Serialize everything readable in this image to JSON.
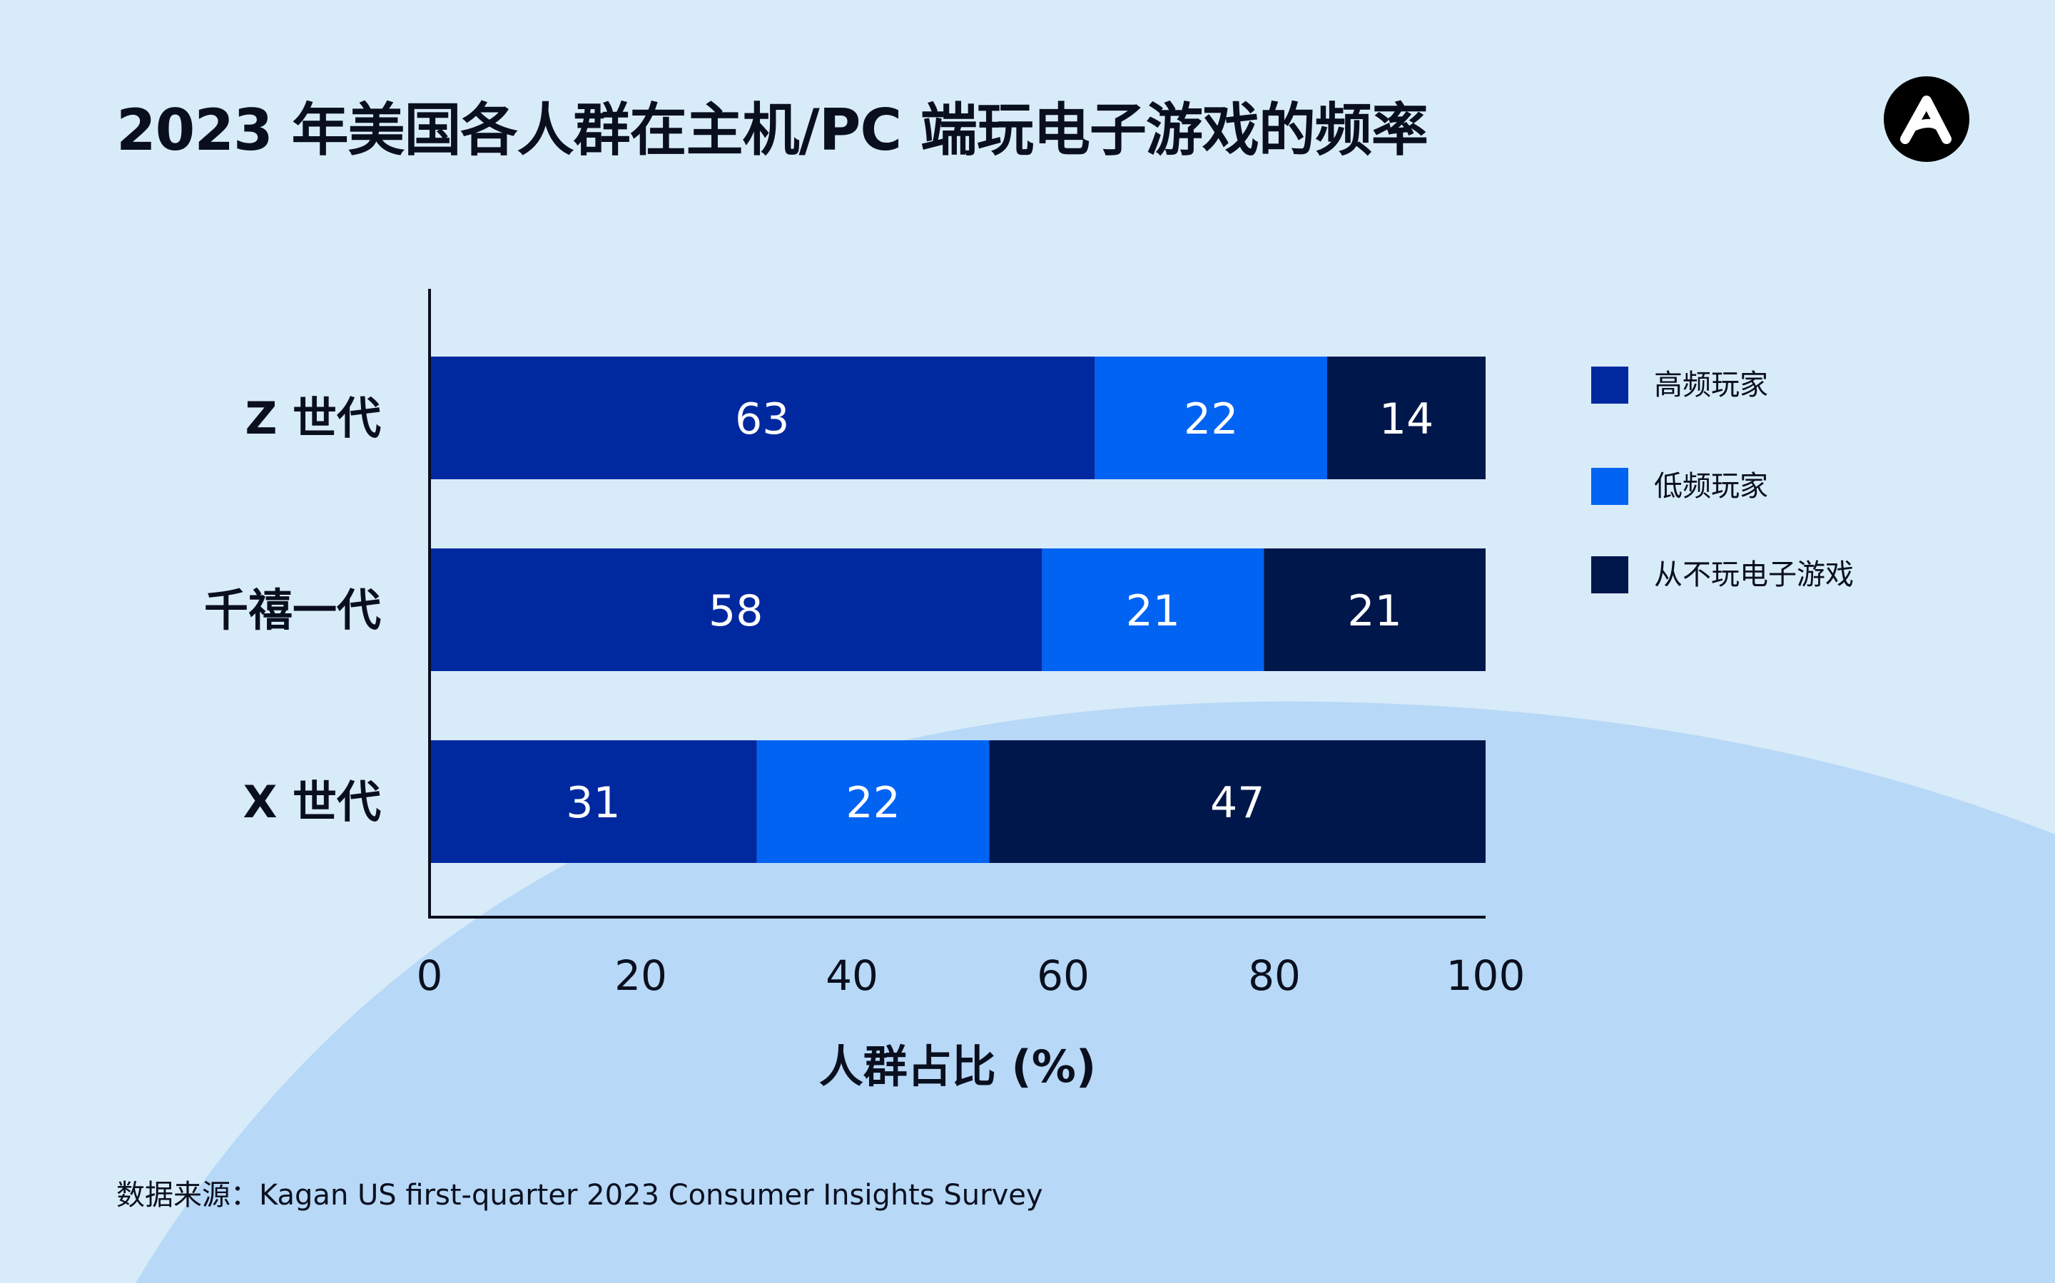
{
  "title": "2023 年美国各人群在主机/PC 端玩电子游戏的频率",
  "source": "数据来源：Kagan US first-quarter 2023 Consumer Insights Survey",
  "logo": {
    "icon": "a-logo-icon"
  },
  "colors": {
    "background": "#d8ebf8",
    "curve": "#b7d8f7",
    "frequent": "#0029a0",
    "infrequent": "#0063f2",
    "never": "#00174c",
    "text": "#0a0f1e"
  },
  "chart_data": {
    "type": "bar",
    "orientation": "horizontal",
    "stacked": true,
    "categories": [
      "Z 世代",
      "千禧一代",
      "X 世代"
    ],
    "series": [
      {
        "name": "高频玩家",
        "values": [
          63,
          58,
          31
        ],
        "color": "#0029a0"
      },
      {
        "name": "低频玩家",
        "values": [
          22,
          21,
          22
        ],
        "color": "#0063f2"
      },
      {
        "name": "从不玩电子游戏",
        "values": [
          14,
          21,
          47
        ],
        "color": "#00174c"
      }
    ],
    "xlabel": "人群占比 (%)",
    "ylabel": "",
    "xlim": [
      0,
      100
    ],
    "xticks": [
      "0",
      "20",
      "40",
      "60",
      "80",
      "100"
    ],
    "grid": false,
    "legend_position": "right"
  }
}
